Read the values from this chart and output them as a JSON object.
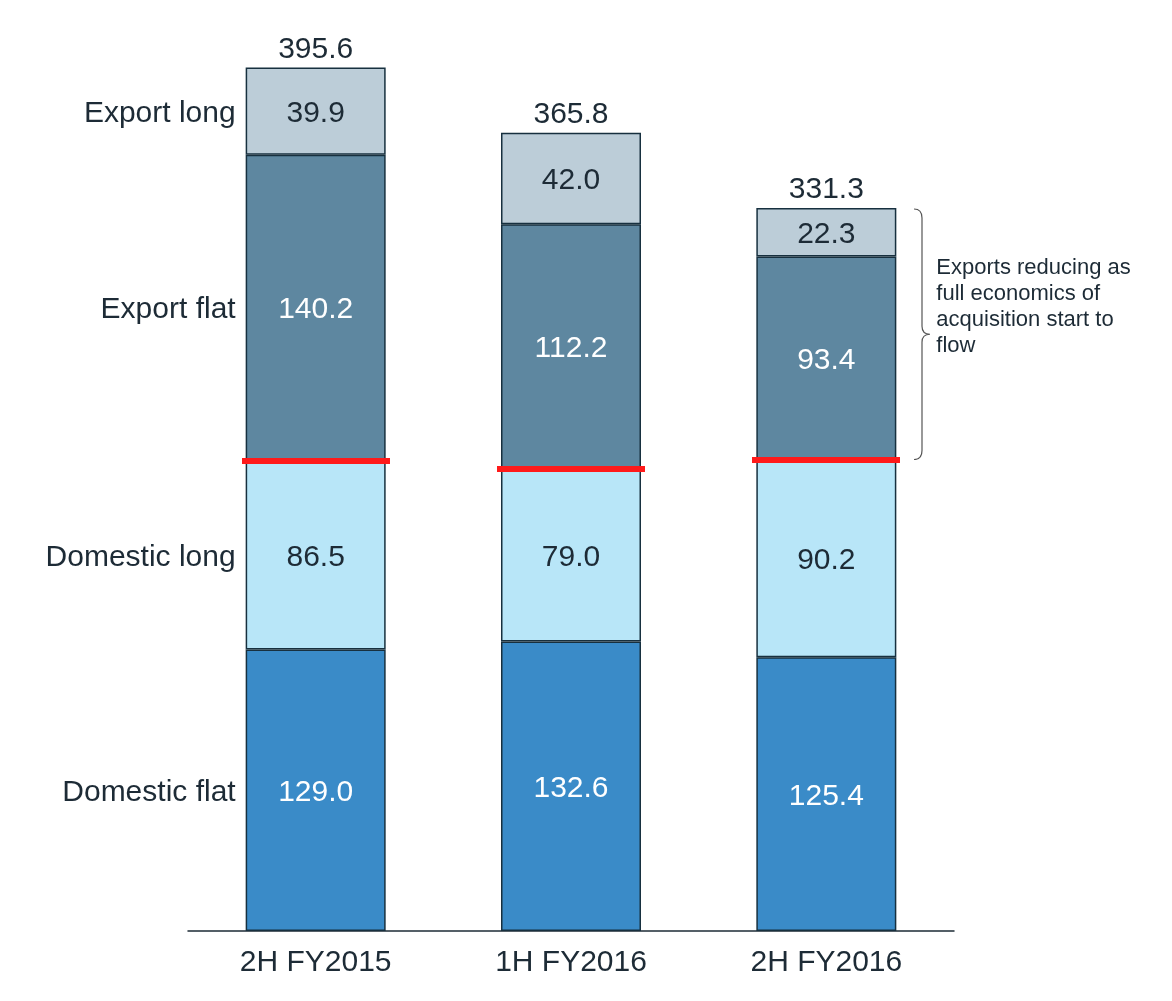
{
  "chart_data": {
    "type": "bar",
    "stacked": true,
    "categories": [
      "2H FY2015",
      "1H FY2016",
      "2H FY2016"
    ],
    "series": [
      {
        "name": "Domestic flat",
        "color": "#3a8bc8",
        "values": [
          129.0,
          132.6,
          125.4
        ],
        "value_labels": [
          "129.0",
          "132.6",
          "125.4"
        ]
      },
      {
        "name": "Domestic long",
        "color": "#b8e6f8",
        "values": [
          86.5,
          79.0,
          90.2
        ],
        "value_labels": [
          "86.5",
          "79.0",
          "90.2"
        ]
      },
      {
        "name": "Export flat",
        "color": "#5e87a0",
        "values": [
          140.2,
          112.2,
          93.4
        ],
        "value_labels": [
          "140.2",
          "112.2",
          "93.4"
        ]
      },
      {
        "name": "Export long",
        "color": "#bccdd8",
        "values": [
          39.9,
          42.0,
          22.3
        ],
        "value_labels": [
          "39.9",
          "42.0",
          "22.3"
        ]
      }
    ],
    "totals": [
      "395.6",
      "365.8",
      "331.3"
    ],
    "legend": false,
    "grid": false,
    "annotations": [
      "Exports reducing as full economics of acquisition start to flow"
    ]
  }
}
